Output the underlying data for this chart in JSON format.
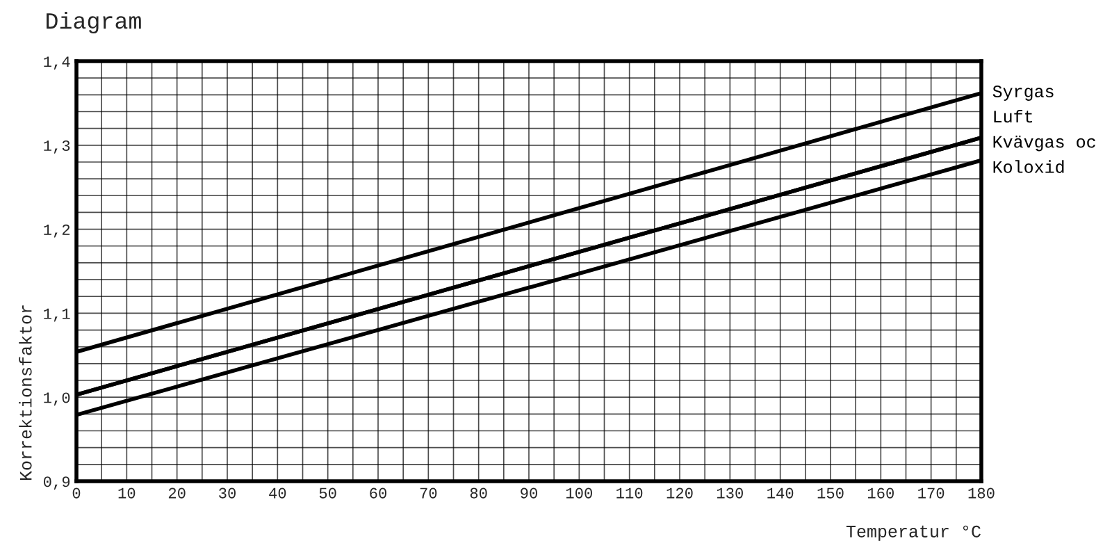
{
  "chart_data": {
    "type": "line",
    "title": "Diagram",
    "xlabel": "Temperatur °C",
    "ylabel": "Korrektionsfaktor",
    "x": [
      0,
      180
    ],
    "series": [
      {
        "name": "Syrgas",
        "color": "#000000",
        "values": [
          1.054,
          1.362
        ]
      },
      {
        "name": "Luft",
        "color": "#000000",
        "values": [
          1.003,
          1.309
        ]
      },
      {
        "name": "Kvävgas oc",
        "color": "#000000",
        "values": [
          1.003,
          1.309
        ]
      },
      {
        "name": "Koloxid",
        "color": "#000000",
        "values": [
          0.979,
          1.282
        ]
      }
    ],
    "xlim": [
      0,
      180
    ],
    "ylim": [
      0.9,
      1.4
    ],
    "xticks": [
      0,
      {
        "value": 5,
        "label": null
      },
      10,
      {
        "value": 15,
        "label": null
      },
      20,
      {
        "value": 25,
        "label": null
      },
      30,
      {
        "value": 35,
        "label": null
      },
      40,
      {
        "value": 45,
        "label": null
      },
      50,
      {
        "value": 55,
        "label": null
      },
      60,
      {
        "value": 65,
        "label": null
      },
      70,
      {
        "value": 75,
        "label": null
      },
      80,
      {
        "value": 85,
        "label": null
      },
      90,
      {
        "value": 95,
        "label": null
      },
      100,
      {
        "value": 105,
        "label": null
      },
      110,
      {
        "value": 115,
        "label": null
      },
      120,
      {
        "value": 125,
        "label": null
      },
      130,
      {
        "value": 135,
        "label": null
      },
      140,
      {
        "value": 145,
        "label": null
      },
      150,
      {
        "value": 155,
        "label": null
      },
      160,
      {
        "value": 165,
        "label": null
      },
      170,
      {
        "value": 175,
        "label": null
      },
      180
    ],
    "yticks": [
      {
        "value": 0.9,
        "label": "0,9"
      },
      {
        "value": 0.92,
        "label": null
      },
      {
        "value": 0.94,
        "label": null
      },
      {
        "value": 0.96,
        "label": null
      },
      {
        "value": 0.98,
        "label": null
      },
      {
        "value": 1.0,
        "label": "1,0"
      },
      {
        "value": 1.02,
        "label": null
      },
      {
        "value": 1.04,
        "label": null
      },
      {
        "value": 1.06,
        "label": null
      },
      {
        "value": 1.08,
        "label": null
      },
      {
        "value": 1.1,
        "label": "1,1"
      },
      {
        "value": 1.12,
        "label": null
      },
      {
        "value": 1.14,
        "label": null
      },
      {
        "value": 1.16,
        "label": null
      },
      {
        "value": 1.18,
        "label": null
      },
      {
        "value": 1.2,
        "label": "1,2"
      },
      {
        "value": 1.22,
        "label": null
      },
      {
        "value": 1.24,
        "label": null
      },
      {
        "value": 1.26,
        "label": null
      },
      {
        "value": 1.28,
        "label": null
      },
      {
        "value": 1.3,
        "label": "1,3"
      },
      {
        "value": 1.32,
        "label": null
      },
      {
        "value": 1.34,
        "label": null
      },
      {
        "value": 1.36,
        "label": null
      },
      {
        "value": 1.38,
        "label": null
      },
      {
        "value": 1.4,
        "label": "1,4"
      }
    ],
    "grid": true,
    "legend": "right",
    "marker": "none",
    "line_style": "solid"
  }
}
